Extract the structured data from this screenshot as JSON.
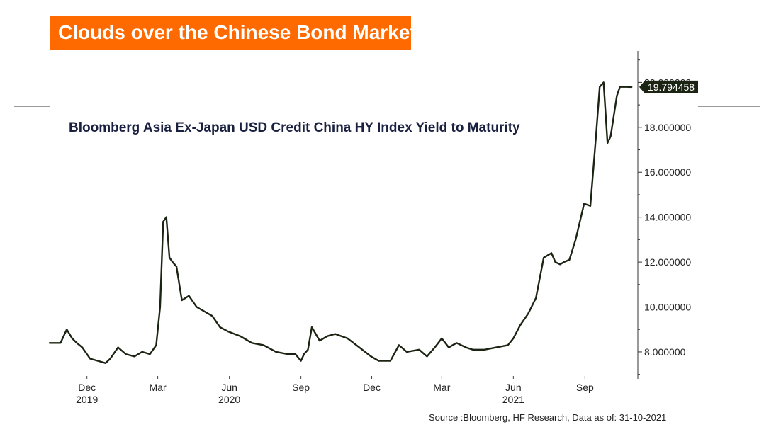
{
  "header": {
    "banner_title": "Clouds over the Chinese Bond Market"
  },
  "chart_data": {
    "type": "line",
    "title": "Bloomberg Asia Ex-Japan USD Credit China HY Index Yield to Maturity",
    "xlabel": "",
    "ylabel": "",
    "ylim": [
      6.8,
      21.4
    ],
    "xlim": [
      "2019-10-14",
      "2021-11-08"
    ],
    "yticks": [
      "8.000000",
      "10.000000",
      "12.000000",
      "14.000000",
      "16.000000",
      "18.000000",
      "20.000000"
    ],
    "xticks": [
      {
        "date": "2019-12-01",
        "month": "Dec",
        "year": "2019"
      },
      {
        "date": "2020-03-01",
        "month": "Mar",
        "year": ""
      },
      {
        "date": "2020-06-01",
        "month": "Jun",
        "year": "2020"
      },
      {
        "date": "2020-09-01",
        "month": "Sep",
        "year": ""
      },
      {
        "date": "2020-12-01",
        "month": "Dec",
        "year": ""
      },
      {
        "date": "2021-03-01",
        "month": "Mar",
        "year": ""
      },
      {
        "date": "2021-06-01",
        "month": "Jun",
        "year": "2021"
      },
      {
        "date": "2021-09-01",
        "month": "Sep",
        "year": ""
      }
    ],
    "last_value_label": "19.794458",
    "line_color": "#1b2412",
    "grid": false,
    "series": [
      {
        "name": "",
        "x": [
          "2019-10-14",
          "2019-10-28",
          "2019-11-05",
          "2019-11-12",
          "2019-11-18",
          "2019-11-25",
          "2019-12-05",
          "2019-12-15",
          "2019-12-25",
          "2019-12-31",
          "2020-01-10",
          "2020-01-20",
          "2020-01-31",
          "2020-02-10",
          "2020-02-20",
          "2020-02-28",
          "2020-03-04",
          "2020-03-08",
          "2020-03-12",
          "2020-03-16",
          "2020-03-20",
          "2020-03-25",
          "2020-04-01",
          "2020-04-10",
          "2020-04-20",
          "2020-04-30",
          "2020-05-10",
          "2020-05-20",
          "2020-05-31",
          "2020-06-15",
          "2020-06-30",
          "2020-07-15",
          "2020-07-31",
          "2020-08-15",
          "2020-08-25",
          "2020-09-01",
          "2020-09-05",
          "2020-09-10",
          "2020-09-15",
          "2020-09-25",
          "2020-10-05",
          "2020-10-15",
          "2020-10-31",
          "2020-11-15",
          "2020-11-30",
          "2020-12-10",
          "2020-12-25",
          "2021-01-05",
          "2021-01-15",
          "2021-01-31",
          "2021-02-10",
          "2021-02-20",
          "2021-03-01",
          "2021-03-10",
          "2021-03-20",
          "2021-04-01",
          "2021-04-10",
          "2021-04-25",
          "2021-05-10",
          "2021-05-25",
          "2021-06-01",
          "2021-06-10",
          "2021-06-20",
          "2021-06-30",
          "2021-07-10",
          "2021-07-20",
          "2021-07-25",
          "2021-07-31",
          "2021-08-05",
          "2021-08-12",
          "2021-08-20",
          "2021-08-31",
          "2021-09-08",
          "2021-09-15",
          "2021-09-20",
          "2021-09-25",
          "2021-09-30",
          "2021-10-04",
          "2021-10-08",
          "2021-10-12",
          "2021-10-16",
          "2021-10-20",
          "2021-10-25",
          "2021-10-31"
        ],
        "values": [
          8.4,
          8.4,
          9.0,
          8.6,
          8.4,
          8.2,
          7.7,
          7.6,
          7.5,
          7.7,
          8.2,
          7.9,
          7.8,
          8.0,
          7.9,
          8.3,
          10.0,
          13.8,
          14.0,
          12.2,
          12.0,
          11.8,
          10.3,
          10.5,
          10.0,
          9.8,
          9.6,
          9.1,
          8.9,
          8.7,
          8.4,
          8.3,
          8.0,
          7.9,
          7.9,
          7.6,
          7.9,
          8.1,
          9.1,
          8.5,
          8.7,
          8.8,
          8.6,
          8.2,
          7.8,
          7.6,
          7.6,
          8.3,
          8.0,
          8.1,
          7.8,
          8.2,
          8.6,
          8.2,
          8.4,
          8.2,
          8.1,
          8.1,
          8.2,
          8.3,
          8.6,
          9.2,
          9.7,
          10.4,
          12.2,
          12.4,
          12.0,
          11.9,
          12.0,
          12.1,
          13.0,
          14.6,
          14.5,
          17.5,
          19.8,
          20.0,
          17.3,
          17.6,
          18.5,
          19.4,
          19.8,
          19.8,
          19.8,
          19.794458
        ]
      }
    ]
  },
  "footer": {
    "source": "Source :Bloomberg, HF Research, Data as of: 31-10-2021"
  }
}
